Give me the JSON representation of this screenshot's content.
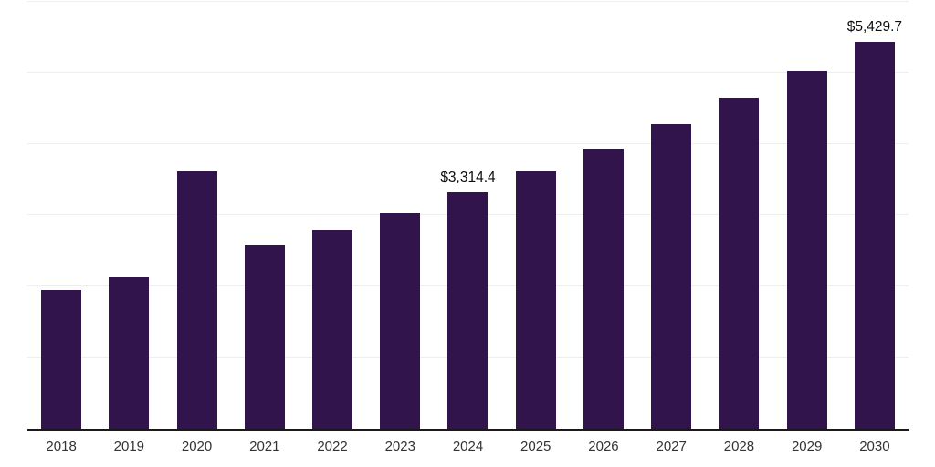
{
  "chart_data": {
    "type": "bar",
    "title": "",
    "xlabel": "",
    "ylabel": "",
    "legend": "none",
    "grid": true,
    "ylim": [
      0,
      6000
    ],
    "gridline_values": [
      1000,
      2000,
      3000,
      4000,
      5000,
      6000
    ],
    "categories": [
      "2018",
      "2019",
      "2020",
      "2021",
      "2022",
      "2023",
      "2024",
      "2025",
      "2026",
      "2027",
      "2028",
      "2029",
      "2030"
    ],
    "values": [
      1955,
      2130,
      3620,
      2575,
      2800,
      3040,
      3314.4,
      3610,
      3930,
      4280,
      4650,
      5030,
      5429.7
    ],
    "points": [
      {
        "year": "2018",
        "value": 1955,
        "label": null
      },
      {
        "year": "2019",
        "value": 2130,
        "label": null
      },
      {
        "year": "2020",
        "value": 3620,
        "label": null
      },
      {
        "year": "2021",
        "value": 2575,
        "label": null
      },
      {
        "year": "2022",
        "value": 2800,
        "label": null
      },
      {
        "year": "2023",
        "value": 3040,
        "label": null
      },
      {
        "year": "2024",
        "value": 3314.4,
        "label": "$3,314.4"
      },
      {
        "year": "2025",
        "value": 3610,
        "label": null
      },
      {
        "year": "2026",
        "value": 3930,
        "label": null
      },
      {
        "year": "2027",
        "value": 4280,
        "label": null
      },
      {
        "year": "2028",
        "value": 4650,
        "label": null
      },
      {
        "year": "2029",
        "value": 5030,
        "label": null
      },
      {
        "year": "2030",
        "value": 5429.7,
        "label": "$5,429.7"
      }
    ],
    "colors": {
      "bar": "#32144d",
      "grid": "#eeeeee",
      "axis": "#1a1a1a",
      "tick_label": "#333333",
      "data_label": "#0d0d0d",
      "background": "#ffffff"
    }
  }
}
